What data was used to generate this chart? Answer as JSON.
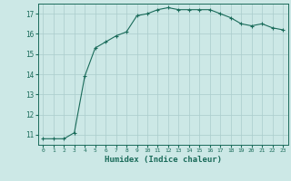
{
  "x": [
    0,
    1,
    2,
    3,
    4,
    5,
    6,
    7,
    8,
    9,
    10,
    11,
    12,
    13,
    14,
    15,
    16,
    17,
    18,
    19,
    20,
    21,
    22,
    23
  ],
  "y": [
    10.8,
    10.8,
    10.8,
    11.1,
    13.9,
    15.3,
    15.6,
    15.9,
    16.1,
    16.9,
    17.0,
    17.2,
    17.3,
    17.2,
    17.2,
    17.2,
    17.2,
    17.0,
    16.8,
    16.5,
    16.4,
    16.5,
    16.3,
    16.2
  ],
  "line_color": "#1a6b5a",
  "marker_color": "#1a6b5a",
  "bg_color": "#cce8e6",
  "grid_color": "#aacccc",
  "xlabel": "Humidex (Indice chaleur)",
  "xlabel_color": "#1a6b5a",
  "tick_color": "#1a6b5a",
  "xlim": [
    -0.5,
    23.5
  ],
  "ylim": [
    10.5,
    17.5
  ],
  "yticks": [
    11,
    12,
    13,
    14,
    15,
    16,
    17
  ],
  "xticks": [
    0,
    1,
    2,
    3,
    4,
    5,
    6,
    7,
    8,
    9,
    10,
    11,
    12,
    13,
    14,
    15,
    16,
    17,
    18,
    19,
    20,
    21,
    22,
    23
  ],
  "xtick_labels": [
    "0",
    "1",
    "2",
    "3",
    "4",
    "5",
    "6",
    "7",
    "8",
    "9",
    "10",
    "11",
    "12",
    "13",
    "14",
    "15",
    "16",
    "17",
    "18",
    "19",
    "20",
    "21",
    "22",
    "23"
  ]
}
